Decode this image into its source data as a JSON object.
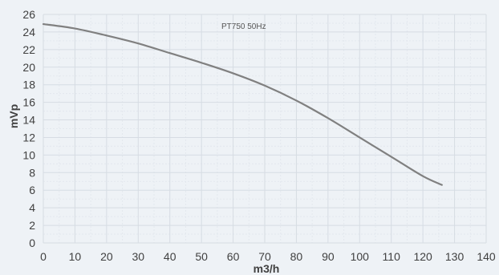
{
  "chart_data": {
    "type": "line",
    "title": "",
    "annotation": "PT750 50Hz",
    "xlabel": "m3/h",
    "ylabel": "mVp",
    "xlim": [
      0,
      140
    ],
    "ylim": [
      0,
      26
    ],
    "x_ticks": [
      0,
      10,
      20,
      30,
      40,
      50,
      60,
      70,
      80,
      90,
      100,
      110,
      120,
      130,
      140
    ],
    "y_ticks": [
      0,
      2,
      4,
      6,
      8,
      10,
      12,
      14,
      16,
      18,
      20,
      22,
      24,
      26
    ],
    "grid": true,
    "series": [
      {
        "x": [
          0,
          10,
          20,
          30,
          40,
          50,
          60,
          70,
          80,
          90,
          100,
          110,
          120,
          126
        ],
        "y": [
          24.9,
          24.4,
          23.6,
          22.7,
          21.6,
          20.5,
          19.3,
          17.9,
          16.2,
          14.2,
          12.0,
          9.8,
          7.6,
          6.6
        ],
        "color": "#808080"
      }
    ]
  }
}
